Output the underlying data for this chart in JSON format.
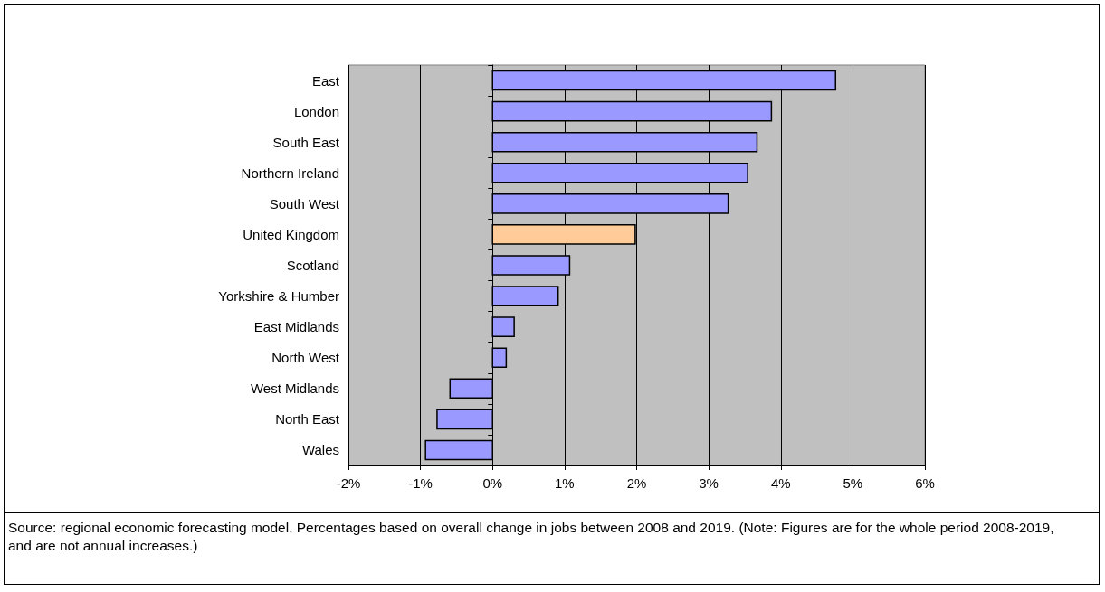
{
  "chart_data": {
    "type": "bar",
    "orientation": "horizontal",
    "categories": [
      "East",
      "London",
      "South East",
      "Northern Ireland",
      "South West",
      "United Kingdom",
      "Scotland",
      "Yorkshire & Humber",
      "East Midlands",
      "North West",
      "West Midlands",
      "North East",
      "Wales"
    ],
    "values": [
      4.76,
      3.87,
      3.67,
      3.54,
      3.27,
      1.98,
      1.07,
      0.91,
      0.3,
      0.19,
      -0.59,
      -0.77,
      -0.93
    ],
    "colors": [
      "#9999ff",
      "#9999ff",
      "#9999ff",
      "#9999ff",
      "#9999ff",
      "#ffcc99",
      "#9999ff",
      "#9999ff",
      "#9999ff",
      "#9999ff",
      "#9999ff",
      "#9999ff",
      "#9999ff"
    ],
    "xlim": [
      -2,
      6
    ],
    "xticks": [
      {
        "value": -2,
        "label": "-2%"
      },
      {
        "value": -1,
        "label": "-1%"
      },
      {
        "value": 0,
        "label": "0%"
      },
      {
        "value": 1,
        "label": "1%"
      },
      {
        "value": 2,
        "label": "2%"
      },
      {
        "value": 3,
        "label": "3%"
      },
      {
        "value": 4,
        "label": "4%"
      },
      {
        "value": 5,
        "label": "5%"
      },
      {
        "value": 6,
        "label": "6%"
      }
    ],
    "grid": "x",
    "annotations": [
      "Source: regional economic forecasting model. Percentages based on overall change in jobs between 2008 and 2019.  (Note: Figures are for the whole period 2008-2019, and are not annual increases.)"
    ]
  }
}
